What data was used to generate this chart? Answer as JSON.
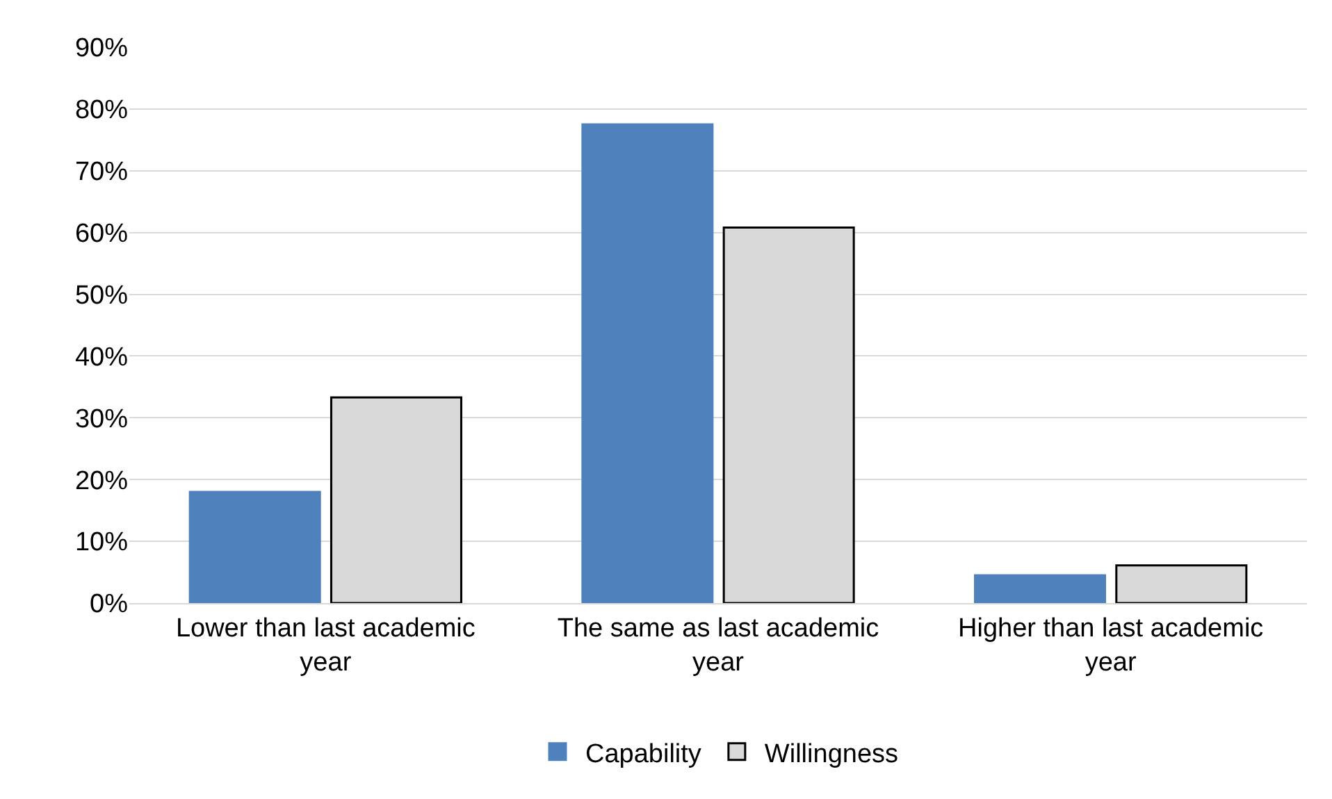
{
  "chart_data": {
    "type": "bar",
    "categories": [
      "Lower than last academic year",
      "The same as last academic year",
      "Higher than last academic year"
    ],
    "series": [
      {
        "name": "Capability",
        "color": "#4f81bd",
        "values": [
          18,
          77.5,
          4.5
        ]
      },
      {
        "name": "Willingness",
        "color": "#d9d9d9",
        "values": [
          33.3,
          60.8,
          6.1
        ]
      }
    ],
    "ylim": [
      0,
      90
    ],
    "yticks": [
      {
        "value": 0,
        "label": "0%"
      },
      {
        "value": 10,
        "label": "10%"
      },
      {
        "value": 20,
        "label": "20%"
      },
      {
        "value": 30,
        "label": "30%"
      },
      {
        "value": 40,
        "label": "40%"
      },
      {
        "value": 50,
        "label": "50%"
      },
      {
        "value": 60,
        "label": "60%"
      },
      {
        "value": 70,
        "label": "70%"
      },
      {
        "value": 80,
        "label": "80%"
      },
      {
        "value": 90,
        "label": "90%"
      }
    ],
    "grid": "y",
    "legend": "bottom"
  }
}
